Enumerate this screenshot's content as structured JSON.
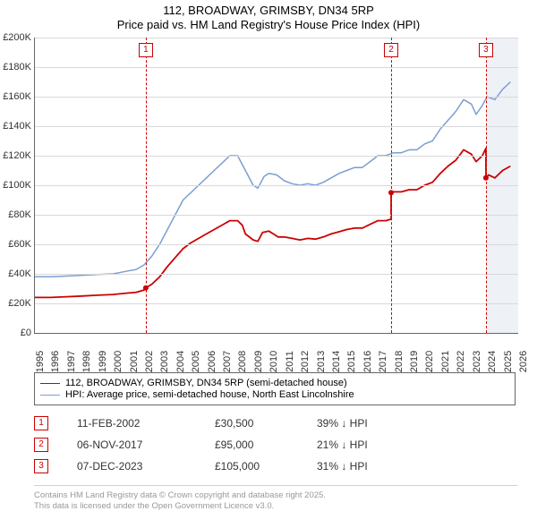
{
  "title": {
    "line1": "112, BROADWAY, GRIMSBY, DN34 5RP",
    "line2": "Price paid vs. HM Land Registry's House Price Index (HPI)"
  },
  "chart": {
    "type": "line",
    "background_color": "#ffffff",
    "grid_color": "#d9d9d9",
    "axis_color": "#666666",
    "label_color": "#333333",
    "label_fontsize": 11,
    "x": {
      "min": 1995,
      "max": 2026,
      "ticks": [
        1995,
        1996,
        1997,
        1998,
        1999,
        2000,
        2001,
        2002,
        2003,
        2004,
        2005,
        2006,
        2007,
        2008,
        2009,
        2010,
        2011,
        2012,
        2013,
        2014,
        2015,
        2016,
        2017,
        2018,
        2019,
        2020,
        2021,
        2022,
        2023,
        2024,
        2025,
        2026
      ]
    },
    "y": {
      "min": 0,
      "max": 200000,
      "tick_step": 20000,
      "ticks_labels": [
        "£0",
        "£20K",
        "£40K",
        "£60K",
        "£80K",
        "£100K",
        "£120K",
        "£140K",
        "£160K",
        "£180K",
        "£200K"
      ]
    },
    "forecast_band_from_x": 2024,
    "series": [
      {
        "id": "hpi",
        "label": "HPI: Average price, semi-detached house, North East Lincolnshire",
        "color": "#7b9fd1",
        "width": 1.5,
        "data": [
          [
            1995,
            38000
          ],
          [
            1996,
            38000
          ],
          [
            1997,
            38500
          ],
          [
            1998,
            39000
          ],
          [
            1999,
            39500
          ],
          [
            2000,
            40000
          ],
          [
            2001,
            42000
          ],
          [
            2001.5,
            43000
          ],
          [
            2002,
            46000
          ],
          [
            2002.5,
            52000
          ],
          [
            2003,
            60000
          ],
          [
            2003.5,
            70000
          ],
          [
            2004,
            80000
          ],
          [
            2004.5,
            90000
          ],
          [
            2005,
            95000
          ],
          [
            2005.5,
            100000
          ],
          [
            2006,
            105000
          ],
          [
            2006.5,
            110000
          ],
          [
            2007,
            115000
          ],
          [
            2007.5,
            120000
          ],
          [
            2008,
            120000
          ],
          [
            2008.5,
            110000
          ],
          [
            2009,
            100000
          ],
          [
            2009.3,
            98000
          ],
          [
            2009.7,
            106000
          ],
          [
            2010,
            108000
          ],
          [
            2010.5,
            107000
          ],
          [
            2011,
            103000
          ],
          [
            2011.5,
            101000
          ],
          [
            2012,
            100000
          ],
          [
            2012.5,
            101000
          ],
          [
            2013,
            100000
          ],
          [
            2013.5,
            102000
          ],
          [
            2014,
            105000
          ],
          [
            2014.5,
            108000
          ],
          [
            2015,
            110000
          ],
          [
            2015.5,
            112000
          ],
          [
            2016,
            112000
          ],
          [
            2016.5,
            116000
          ],
          [
            2017,
            120000
          ],
          [
            2017.5,
            120000
          ],
          [
            2018,
            122000
          ],
          [
            2018.5,
            122000
          ],
          [
            2019,
            124000
          ],
          [
            2019.5,
            124000
          ],
          [
            2020,
            128000
          ],
          [
            2020.5,
            130000
          ],
          [
            2021,
            138000
          ],
          [
            2021.5,
            144000
          ],
          [
            2022,
            150000
          ],
          [
            2022.5,
            158000
          ],
          [
            2023,
            155000
          ],
          [
            2023.3,
            148000
          ],
          [
            2023.7,
            154000
          ],
          [
            2024,
            160000
          ],
          [
            2024.5,
            158000
          ],
          [
            2025,
            165000
          ],
          [
            2025.5,
            170000
          ]
        ]
      },
      {
        "id": "property",
        "label": "112, BROADWAY, GRIMSBY, DN34 5RP (semi-detached house)",
        "color": "#cc0000",
        "width": 1.8,
        "data": [
          [
            1995,
            24000
          ],
          [
            1996,
            24000
          ],
          [
            1997,
            24500
          ],
          [
            1998,
            25000
          ],
          [
            1999,
            25500
          ],
          [
            2000,
            26000
          ],
          [
            2001,
            27000
          ],
          [
            2001.5,
            27500
          ],
          [
            2002,
            29000
          ],
          [
            2002.11,
            30500
          ],
          [
            2002.5,
            33000
          ],
          [
            2003,
            38000
          ],
          [
            2003.5,
            45000
          ],
          [
            2004,
            51000
          ],
          [
            2004.5,
            57000
          ],
          [
            2005,
            61000
          ],
          [
            2005.5,
            64000
          ],
          [
            2006,
            67000
          ],
          [
            2006.5,
            70000
          ],
          [
            2007,
            73000
          ],
          [
            2007.5,
            76000
          ],
          [
            2008,
            76000
          ],
          [
            2008.3,
            73000
          ],
          [
            2008.5,
            67000
          ],
          [
            2009,
            63000
          ],
          [
            2009.3,
            62000
          ],
          [
            2009.6,
            68000
          ],
          [
            2010,
            69000
          ],
          [
            2010.3,
            67000
          ],
          [
            2010.6,
            65000
          ],
          [
            2011,
            65000
          ],
          [
            2011.5,
            64000
          ],
          [
            2012,
            63000
          ],
          [
            2012.5,
            64000
          ],
          [
            2013,
            63500
          ],
          [
            2013.5,
            65000
          ],
          [
            2014,
            67000
          ],
          [
            2014.5,
            68500
          ],
          [
            2015,
            70000
          ],
          [
            2015.5,
            71000
          ],
          [
            2016,
            71000
          ],
          [
            2016.5,
            73500
          ],
          [
            2017,
            76000
          ],
          [
            2017.5,
            76000
          ],
          [
            2017.85,
            77000
          ],
          [
            2017.851,
            95000
          ],
          [
            2018,
            95500
          ],
          [
            2018.5,
            95500
          ],
          [
            2019,
            97000
          ],
          [
            2019.5,
            97000
          ],
          [
            2020,
            100000
          ],
          [
            2020.5,
            102000
          ],
          [
            2021,
            108000
          ],
          [
            2021.5,
            113000
          ],
          [
            2022,
            117000
          ],
          [
            2022.5,
            124000
          ],
          [
            2023,
            121000
          ],
          [
            2023.3,
            116000
          ],
          [
            2023.7,
            120000
          ],
          [
            2023.93,
            125000
          ],
          [
            2023.931,
            105000
          ],
          [
            2024.1,
            107000
          ],
          [
            2024.5,
            105000
          ],
          [
            2025,
            110000
          ],
          [
            2025.5,
            113000
          ]
        ]
      }
    ],
    "sale_points": {
      "color": "#cc0000",
      "radius": 3,
      "points": [
        {
          "x": 2002.11,
          "y": 30500
        },
        {
          "x": 2017.85,
          "y": 95000
        },
        {
          "x": 2023.93,
          "y": 105000
        }
      ]
    },
    "markers": [
      {
        "num": "1",
        "x": 2002.11,
        "date": "11-FEB-2002",
        "price": "£30,500",
        "pct": "39% ↓ HPI"
      },
      {
        "num": "2",
        "x": 2017.85,
        "date": "06-NOV-2017",
        "price": "£95,000",
        "pct": "21% ↓ HPI"
      },
      {
        "num": "3",
        "x": 2023.93,
        "date": "07-DEC-2023",
        "price": "£105,000",
        "pct": "31% ↓ HPI"
      }
    ]
  },
  "legend": {
    "border_color": "#666666",
    "fontsize": 11
  },
  "footer": {
    "line1": "Contains HM Land Registry data © Crown copyright and database right 2025.",
    "line2": "This data is licensed under the Open Government Licence v3.0.",
    "color": "#999999"
  }
}
